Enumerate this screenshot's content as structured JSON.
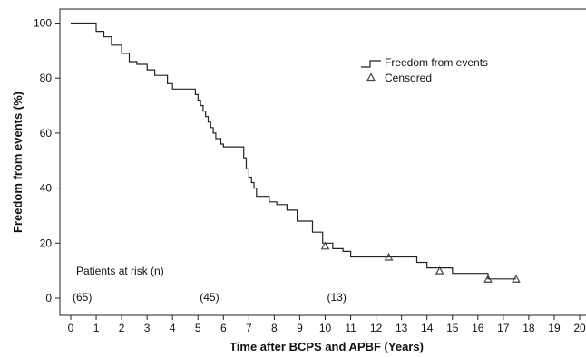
{
  "chart_data": {
    "type": "line",
    "xlabel": "Time after BCPS and APBF (Years)",
    "ylabel": "Freedom from events (%)",
    "xlim": [
      0,
      20
    ],
    "ylim": [
      0,
      100
    ],
    "x_ticks": [
      "0",
      "1",
      "2",
      "3",
      "4",
      "5",
      "6",
      "7",
      "8",
      "9",
      "10",
      "11",
      "12",
      "13",
      "14",
      "15",
      "16",
      "17",
      "18",
      "19",
      "20"
    ],
    "y_ticks": [
      "0",
      "20",
      "40",
      "60",
      "80",
      "100"
    ],
    "grid": false,
    "legend_position": "top-right",
    "legend": {
      "line_label": "Freedom from events",
      "marker_label": "Censored",
      "marker_symbol": "Δ"
    },
    "series": [
      {
        "name": "Freedom from events",
        "kind": "step",
        "x": [
          0,
          1.0,
          1.3,
          1.6,
          2.0,
          2.3,
          2.6,
          3.0,
          3.3,
          3.8,
          4.0,
          4.4,
          4.9,
          5.0,
          5.1,
          5.2,
          5.3,
          5.4,
          5.5,
          5.6,
          5.7,
          5.9,
          6.0,
          6.7,
          6.8,
          6.9,
          7.0,
          7.1,
          7.2,
          7.3,
          7.4,
          7.8,
          8.1,
          8.5,
          8.9,
          9.5,
          9.9,
          10.3,
          10.7,
          11.0,
          13.3,
          13.6,
          14.0,
          15.0,
          16.0,
          16.4,
          17.5
        ],
        "y": [
          100,
          97,
          95,
          92,
          89,
          86,
          85,
          83,
          81,
          78,
          76,
          76,
          74,
          72,
          70,
          68,
          66,
          64,
          62,
          60,
          58,
          56,
          55,
          55,
          51,
          47,
          44,
          42,
          40,
          37,
          37,
          35,
          34,
          32,
          28,
          24,
          20,
          18,
          17,
          15,
          15,
          13,
          11,
          9,
          9,
          7,
          7
        ]
      }
    ],
    "censored": {
      "name": "Censored",
      "x": [
        10.0,
        12.5,
        14.5,
        16.4,
        17.5
      ],
      "y": [
        19,
        15,
        10,
        7,
        7
      ]
    },
    "annotations": {
      "risk_title": "Patients at risk (n)",
      "risk_counts": [
        {
          "x": 0,
          "label": "(65)"
        },
        {
          "x": 5,
          "label": "(45)"
        },
        {
          "x": 10,
          "label": "(13)"
        }
      ]
    }
  },
  "colors": {
    "line": "#222222",
    "axis": "#222222",
    "marker": "#444444",
    "background": "#ffffff"
  }
}
